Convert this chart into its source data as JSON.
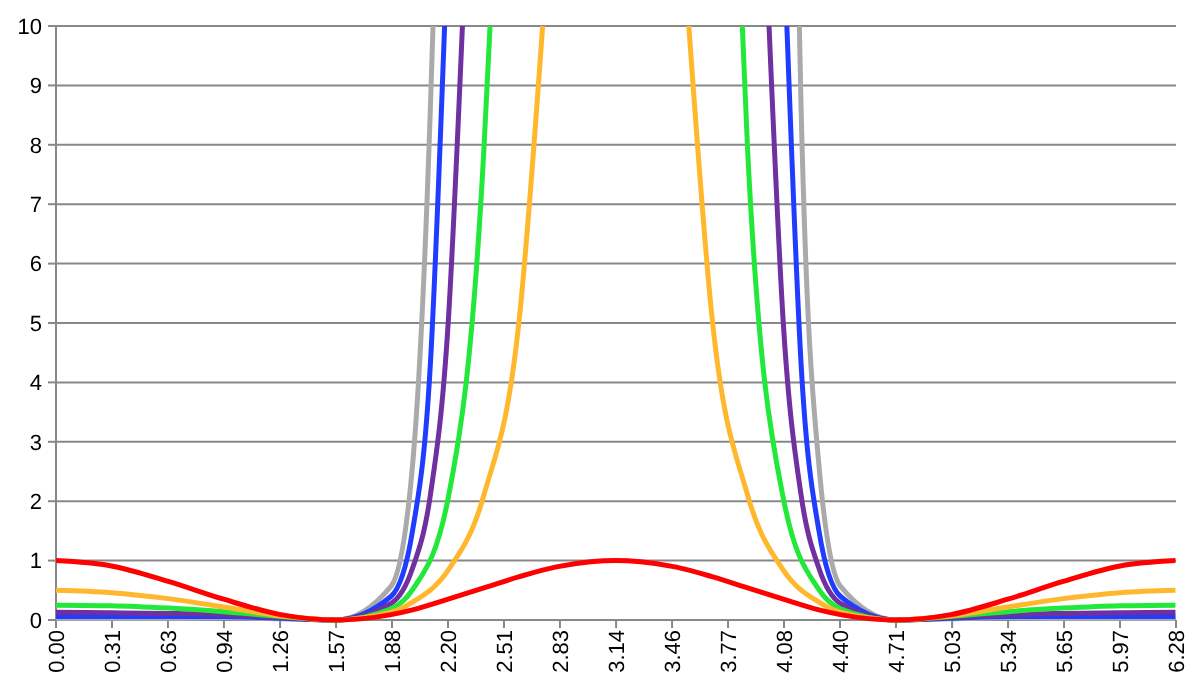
{
  "chart_data": {
    "type": "line",
    "xlim": [
      0,
      6.283
    ],
    "ylim": [
      0,
      10
    ],
    "xticks": [
      {
        "value": 0,
        "label": "0.00"
      },
      {
        "value": 0.314,
        "label": "0.31"
      },
      {
        "value": 0.628,
        "label": "0.63"
      },
      {
        "value": 0.942,
        "label": "0.94"
      },
      {
        "value": 1.257,
        "label": "1.26"
      },
      {
        "value": 1.571,
        "label": "1.57"
      },
      {
        "value": 1.885,
        "label": "1.88"
      },
      {
        "value": 2.199,
        "label": "2.20"
      },
      {
        "value": 2.513,
        "label": "2.51"
      },
      {
        "value": 2.827,
        "label": "2.83"
      },
      {
        "value": 3.142,
        "label": "3.14"
      },
      {
        "value": 3.456,
        "label": "3.46"
      },
      {
        "value": 3.77,
        "label": "3.77"
      },
      {
        "value": 4.084,
        "label": "4.08"
      },
      {
        "value": 4.398,
        "label": "4.40"
      },
      {
        "value": 4.712,
        "label": "4.71"
      },
      {
        "value": 5.027,
        "label": "5.03"
      },
      {
        "value": 5.341,
        "label": "5.34"
      },
      {
        "value": 5.655,
        "label": "5.65"
      },
      {
        "value": 5.969,
        "label": "5.97"
      },
      {
        "value": 6.283,
        "label": "6.28"
      }
    ],
    "yticks": [
      0,
      1,
      2,
      3,
      4,
      5,
      6,
      7,
      8,
      9,
      10
    ],
    "grid": "y",
    "marker": "none",
    "line_style": "solid",
    "series": [
      {
        "color": "#aaaaaa",
        "x": [
          0,
          0.31,
          0.63,
          0.94,
          1.26,
          1.57,
          1.88,
          2.0,
          2.1,
          2.115,
          3.14,
          4.17,
          4.18,
          4.28,
          4.4,
          4.71,
          5.02,
          5.34,
          5.65,
          5.97,
          6.28
        ],
        "values": [
          0.03,
          0.03,
          0.03,
          0.04,
          0.02,
          0,
          0.57,
          2.6,
          8.6,
          10,
          null,
          10,
          8.6,
          2.6,
          0.57,
          0,
          0.02,
          0.04,
          0.03,
          0.03,
          0.03
        ]
      },
      {
        "color": "#1f3cff",
        "x": [
          0,
          0.31,
          0.63,
          0.94,
          1.26,
          1.57,
          1.88,
          2.0,
          2.1,
          2.18,
          3.14,
          4.1,
          4.18,
          4.28,
          4.4,
          4.71,
          5.02,
          5.34,
          5.65,
          5.97,
          6.28
        ],
        "values": [
          0.06,
          0.06,
          0.06,
          0.06,
          0.03,
          0,
          0.4,
          1.5,
          4.3,
          10,
          null,
          10,
          4.3,
          1.5,
          0.4,
          0,
          0.03,
          0.06,
          0.06,
          0.06,
          0.06
        ]
      },
      {
        "color": "#7030a0",
        "x": [
          0,
          0.31,
          0.63,
          0.94,
          1.26,
          1.57,
          1.88,
          2.0,
          2.1,
          2.2,
          2.28,
          3.14,
          4.0,
          4.08,
          4.18,
          4.28,
          4.4,
          4.71,
          5.02,
          5.34,
          5.65,
          5.97,
          6.28
        ],
        "values": [
          0.13,
          0.12,
          0.11,
          0.09,
          0.04,
          0,
          0.28,
          0.87,
          2.1,
          5,
          10,
          null,
          10,
          5,
          2.1,
          0.87,
          0.28,
          0,
          0.04,
          0.09,
          0.11,
          0.12,
          0.13
        ]
      },
      {
        "color": "#22e83a",
        "x": [
          0,
          0.31,
          0.63,
          0.94,
          1.26,
          1.57,
          1.88,
          2.0,
          2.2,
          2.4,
          2.435,
          3.14,
          3.85,
          3.88,
          4.08,
          4.28,
          4.4,
          4.71,
          5.02,
          5.34,
          5.65,
          5.97,
          6.28
        ],
        "values": [
          0.25,
          0.24,
          0.2,
          0.14,
          0.06,
          0,
          0.19,
          0.51,
          2.05,
          7.9,
          10,
          null,
          10,
          7.9,
          2.05,
          0.51,
          0.19,
          0,
          0.06,
          0.14,
          0.2,
          0.24,
          0.25
        ]
      },
      {
        "color": "#ffb82e",
        "x": [
          0,
          0.31,
          0.63,
          0.94,
          1.26,
          1.57,
          1.88,
          2.0,
          2.2,
          2.4,
          2.6,
          2.73,
          3.14,
          3.55,
          3.68,
          3.88,
          4.08,
          4.28,
          4.4,
          4.71,
          5.02,
          5.34,
          5.65,
          5.97,
          6.28
        ],
        "values": [
          0.5,
          0.46,
          0.36,
          0.22,
          0.07,
          0,
          0.13,
          0.3,
          0.84,
          2.1,
          5.1,
          10,
          null,
          10,
          5.1,
          2.1,
          0.84,
          0.3,
          0.13,
          0,
          0.07,
          0.22,
          0.36,
          0.46,
          0.5
        ]
      },
      {
        "color": "#ff0000",
        "x": [
          0,
          0.31,
          0.63,
          0.94,
          1.26,
          1.57,
          1.88,
          2.0,
          2.2,
          2.4,
          2.6,
          2.8,
          3.0,
          3.14,
          3.28,
          3.48,
          3.68,
          3.88,
          4.08,
          4.28,
          4.4,
          4.71,
          5.02,
          5.34,
          5.65,
          5.97,
          6.28
        ],
        "values": [
          1,
          0.91,
          0.65,
          0.35,
          0.09,
          0,
          0.09,
          0.17,
          0.35,
          0.54,
          0.73,
          0.89,
          0.98,
          1,
          0.98,
          0.89,
          0.73,
          0.54,
          0.35,
          0.17,
          0.09,
          0,
          0.09,
          0.35,
          0.65,
          0.91,
          1
        ]
      }
    ]
  }
}
